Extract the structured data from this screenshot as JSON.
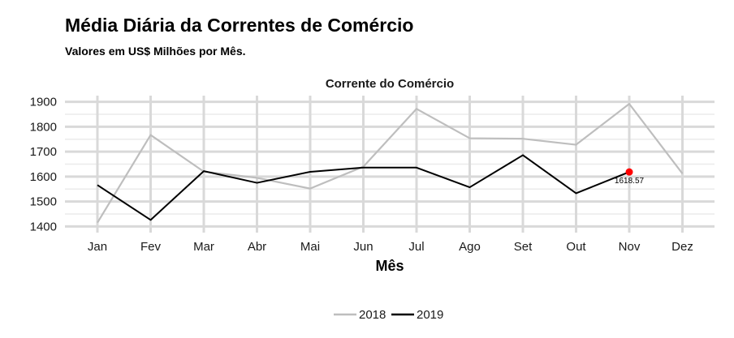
{
  "title": "Média Diária da Correntes de Comércio",
  "subtitle": "Valores em US$ Milhões por Mês.",
  "chart_data": {
    "type": "line",
    "panel_title": "Corrente do Comércio",
    "xlabel": "Mês",
    "ylabel": "",
    "categories": [
      "Jan",
      "Fev",
      "Mar",
      "Abr",
      "Mai",
      "Jun",
      "Jul",
      "Ago",
      "Set",
      "Out",
      "Nov",
      "Dez"
    ],
    "ylim": [
      1375,
      1925
    ],
    "yticks": [
      1400,
      1500,
      1600,
      1700,
      1800,
      1900
    ],
    "grid": true,
    "legend_position": "bottom",
    "series": [
      {
        "name": "2018",
        "color": "#bebebe",
        "values": [
          1415,
          1767,
          1620,
          1595,
          1552,
          1640,
          1872,
          1754,
          1752,
          1728,
          1892,
          1612
        ]
      },
      {
        "name": "2019",
        "color": "#000000",
        "values": [
          1566,
          1426,
          1622,
          1575,
          1619,
          1636,
          1636,
          1557,
          1686,
          1533,
          1618.57,
          null
        ]
      }
    ],
    "highlight": {
      "series": "2019",
      "category": "Nov",
      "value": 1618.57,
      "label": "1618.57",
      "color": "#ff0000"
    }
  }
}
